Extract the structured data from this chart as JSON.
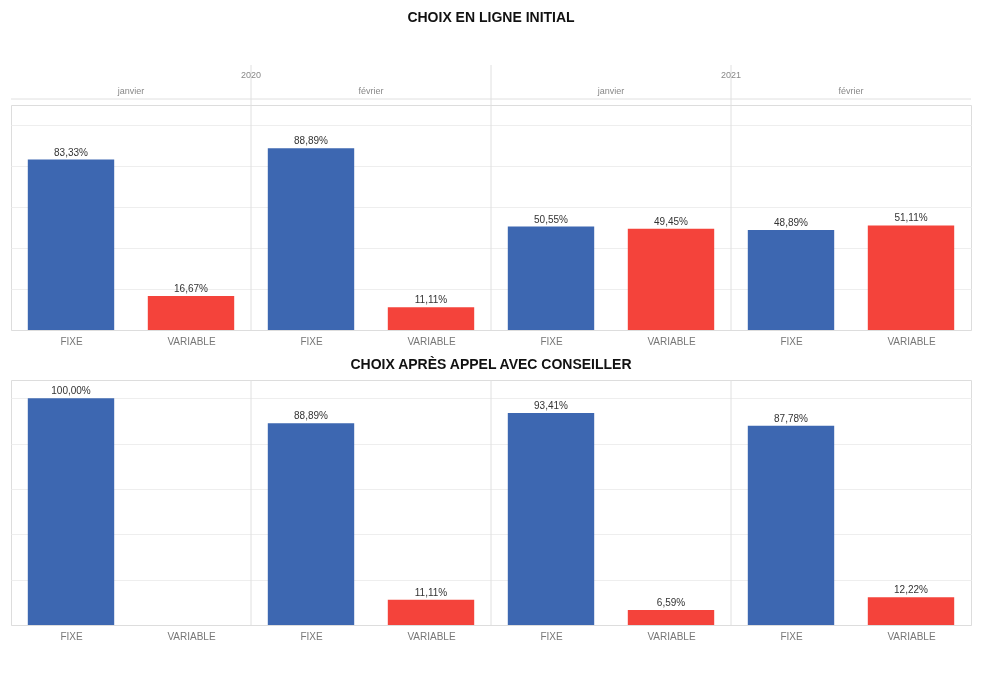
{
  "chart_data": [
    {
      "type": "bar",
      "title": "CHOIX EN LIGNE INITIAL",
      "categories": [
        "FIXE",
        "VARIABLE",
        "FIXE",
        "VARIABLE",
        "FIXE",
        "VARIABLE",
        "FIXE",
        "VARIABLE"
      ],
      "values": [
        83.33,
        16.67,
        88.89,
        11.11,
        50.55,
        49.45,
        48.89,
        51.11
      ],
      "colors": [
        "#3d67b1",
        "#f4433b",
        "#3d67b1",
        "#f4433b",
        "#3d67b1",
        "#f4433b",
        "#3d67b1",
        "#f4433b"
      ],
      "value_labels": [
        "83,33%",
        "16,67%",
        "88,89%",
        "11,11%",
        "50,55%",
        "49,45%",
        "48,89%",
        "51,11%"
      ],
      "annotations": [
        "2020",
        "2021",
        "janvier",
        "février",
        "janvier",
        "février"
      ],
      "ylim": [
        0,
        110
      ],
      "yticks": [
        {
          "value": 0,
          "label": null
        },
        {
          "value": 20,
          "label": null
        },
        {
          "value": 40,
          "label": null
        },
        {
          "value": 60,
          "label": null
        },
        {
          "value": 80,
          "label": null
        },
        {
          "value": 100,
          "label": null
        }
      ],
      "grid": "y",
      "tick_labels": "x"
    },
    {
      "type": "bar",
      "title": "CHOIX APRÈS APPEL AVEC CONSEILLER",
      "categories": [
        "FIXE",
        "VARIABLE",
        "FIXE",
        "VARIABLE",
        "FIXE",
        "VARIABLE",
        "FIXE",
        "VARIABLE"
      ],
      "values": [
        100.0,
        0,
        88.89,
        11.11,
        93.41,
        6.59,
        87.78,
        12.22
      ],
      "colors": [
        "#3d67b1",
        "#f4433b",
        "#3d67b1",
        "#f4433b",
        "#3d67b1",
        "#f4433b",
        "#3d67b1",
        "#f4433b"
      ],
      "value_labels": [
        "100,00%",
        null,
        "88,89%",
        "11,11%",
        "93,41%",
        "6,59%",
        "87,78%",
        "12,22%"
      ],
      "ylim": [
        0,
        108
      ],
      "yticks": [
        {
          "value": 0,
          "label": null
        },
        {
          "value": 20,
          "label": null
        },
        {
          "value": 40,
          "label": null
        },
        {
          "value": 60,
          "label": null
        },
        {
          "value": 80,
          "label": null
        },
        {
          "value": 100,
          "label": null
        }
      ],
      "grid": "y",
      "tick_labels": "x"
    }
  ]
}
